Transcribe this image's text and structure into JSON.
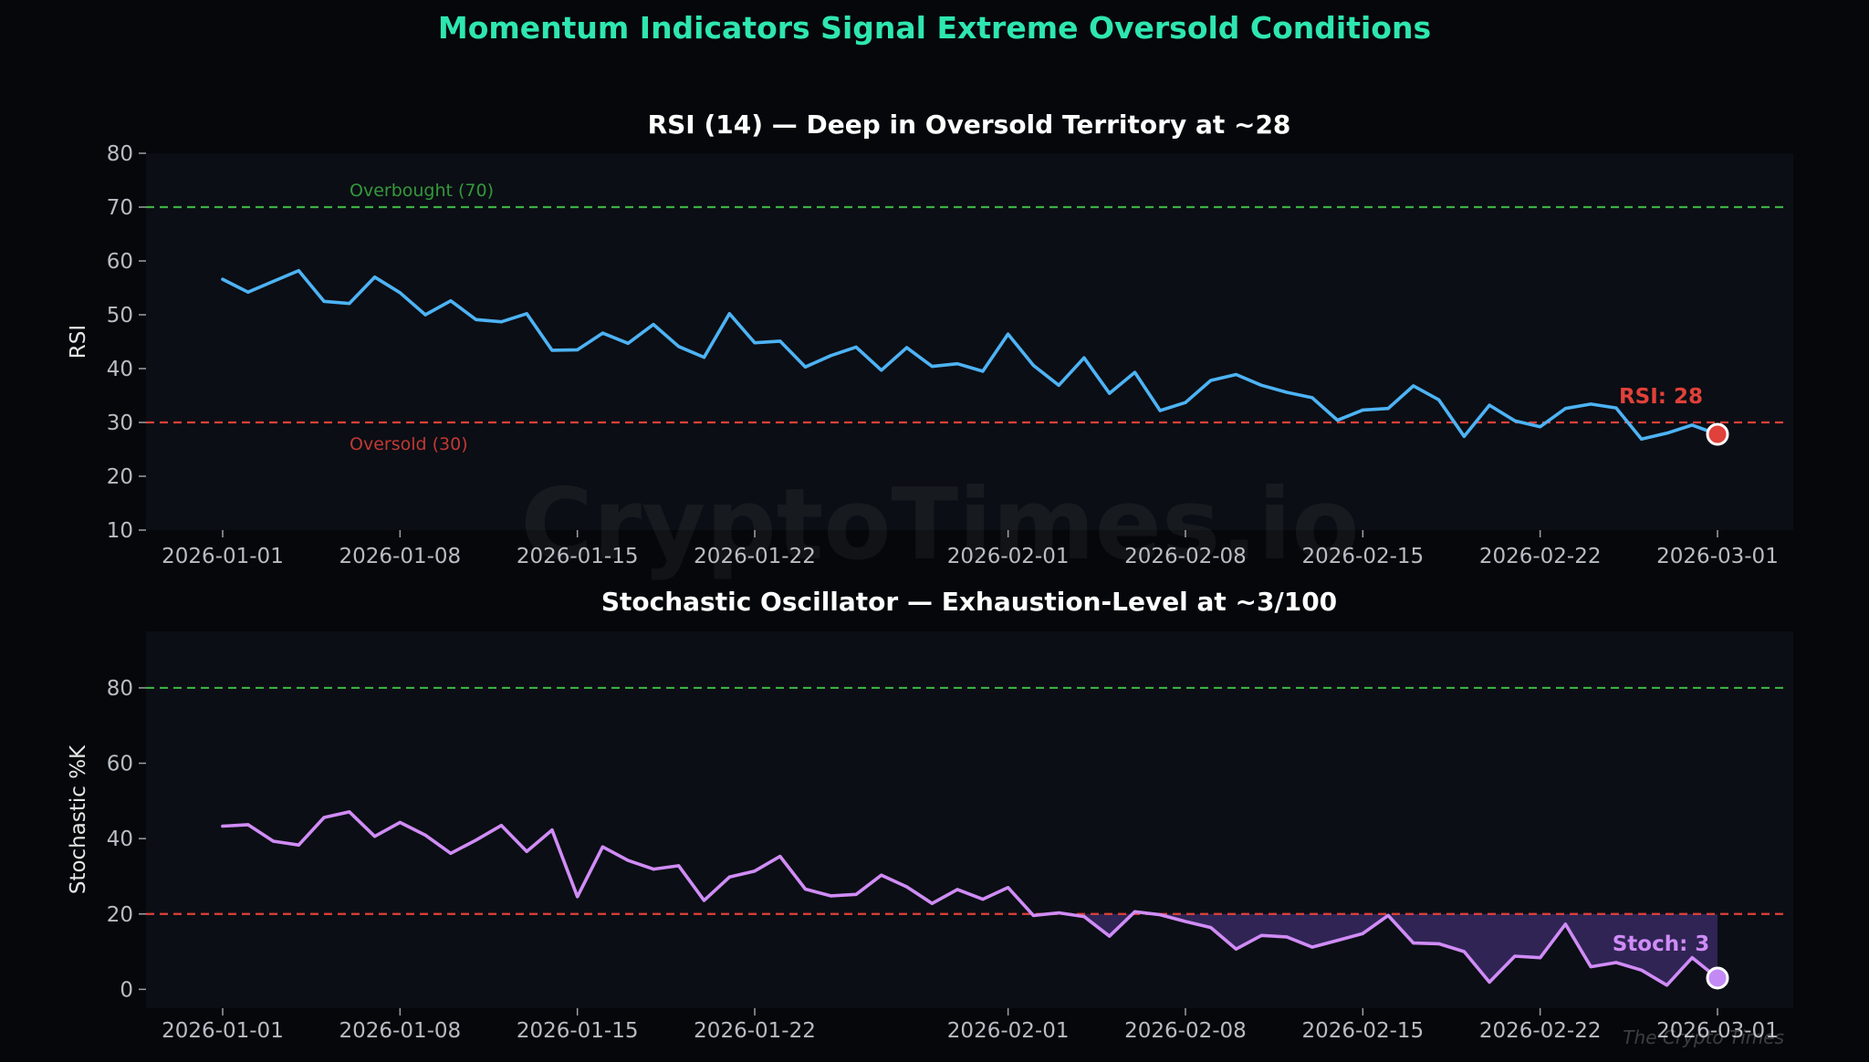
{
  "title": "Momentum Indicators Signal Extreme Oversold Conditions",
  "watermark": "CryptoTimes.io",
  "credit": "The Crypto Times",
  "colors": {
    "background": "#05070a",
    "panel": "#0b0e14",
    "title": "#2ee6b0",
    "rsi_line": "#4db3f5",
    "stoch_line": "#d08cf7",
    "overbought": "#3cb043",
    "oversold": "#e0413a",
    "rsi_marker": "#e0413a",
    "stoch_marker": "#c38af5",
    "fill": "#4a3480"
  },
  "chart_data": [
    {
      "type": "line",
      "title": "RSI (14) — Deep in Oversold Territory at ~28",
      "ylabel": "RSI",
      "xlabel": "",
      "ylim": [
        10,
        80
      ],
      "yticks": [
        10,
        20,
        30,
        40,
        50,
        60,
        70,
        80
      ],
      "x_start": "2026-01-01",
      "x_end": "2026-03-01",
      "xticks": [
        "2026-01-01",
        "2026-01-08",
        "2026-01-15",
        "2026-01-22",
        "2026-02-01",
        "2026-02-08",
        "2026-02-15",
        "2026-02-22",
        "2026-03-01"
      ],
      "grid": false,
      "reference_lines": [
        {
          "value": 70,
          "label": "Overbought (70)",
          "color": "#3cb043"
        },
        {
          "value": 30,
          "label": "Oversold (30)",
          "color": "#e0413a"
        }
      ],
      "annotation": "RSI: 28",
      "series": [
        {
          "values": [
            56.6,
            54.2,
            56.2,
            58.2,
            52.5,
            52.1,
            57.0,
            54.1,
            50.0,
            52.6,
            49.1,
            48.7,
            50.2,
            43.4,
            43.5,
            46.6,
            44.7,
            48.2,
            44.1,
            42.1,
            50.2,
            44.8,
            45.1,
            40.3,
            42.4,
            44.0,
            39.7,
            43.9,
            40.4,
            40.9,
            39.5,
            46.4,
            40.6,
            36.9,
            42.0,
            35.4,
            39.3,
            32.2,
            33.7,
            37.8,
            38.9,
            36.9,
            35.6,
            34.6,
            30.4,
            32.3,
            32.6,
            36.8,
            34.2,
            27.4,
            33.2,
            30.3,
            29.2,
            32.6,
            33.4,
            32.7,
            26.9,
            28.0,
            29.5,
            27.8
          ]
        }
      ]
    },
    {
      "type": "line",
      "title": "Stochastic Oscillator — Exhaustion-Level at ~3/100",
      "ylabel": "Stochastic %K",
      "xlabel": "",
      "ylim": [
        -5,
        95
      ],
      "yticks": [
        0,
        20,
        40,
        60,
        80
      ],
      "x_start": "2026-01-01",
      "x_end": "2026-03-01",
      "xticks": [
        "2026-01-01",
        "2026-01-08",
        "2026-01-15",
        "2026-01-22",
        "2026-02-01",
        "2026-02-08",
        "2026-02-15",
        "2026-02-22",
        "2026-03-01"
      ],
      "grid": false,
      "reference_lines": [
        {
          "value": 80,
          "label": "",
          "color": "#3cb043"
        },
        {
          "value": 20,
          "label": "",
          "color": "#e0413a"
        }
      ],
      "shaded_below": 20,
      "annotation": "Stoch: 3",
      "series": [
        {
          "values": [
            43.3,
            43.7,
            39.3,
            38.3,
            45.6,
            47.1,
            40.6,
            44.3,
            40.9,
            36.1,
            39.6,
            43.5,
            36.6,
            42.3,
            24.6,
            37.8,
            34.2,
            31.9,
            32.8,
            23.6,
            29.8,
            31.4,
            35.3,
            26.6,
            24.8,
            25.2,
            30.3,
            27.2,
            22.8,
            26.5,
            23.9,
            27.0,
            19.6,
            20.3,
            19.3,
            14.1,
            20.6,
            19.8,
            18.0,
            16.4,
            10.7,
            14.3,
            13.9,
            11.2,
            13.0,
            14.8,
            19.6,
            12.3,
            12.1,
            10.0,
            1.9,
            8.8,
            8.4,
            17.3,
            6.0,
            7.1,
            5.1,
            1.1,
            8.4,
            3.0
          ]
        }
      ]
    }
  ]
}
